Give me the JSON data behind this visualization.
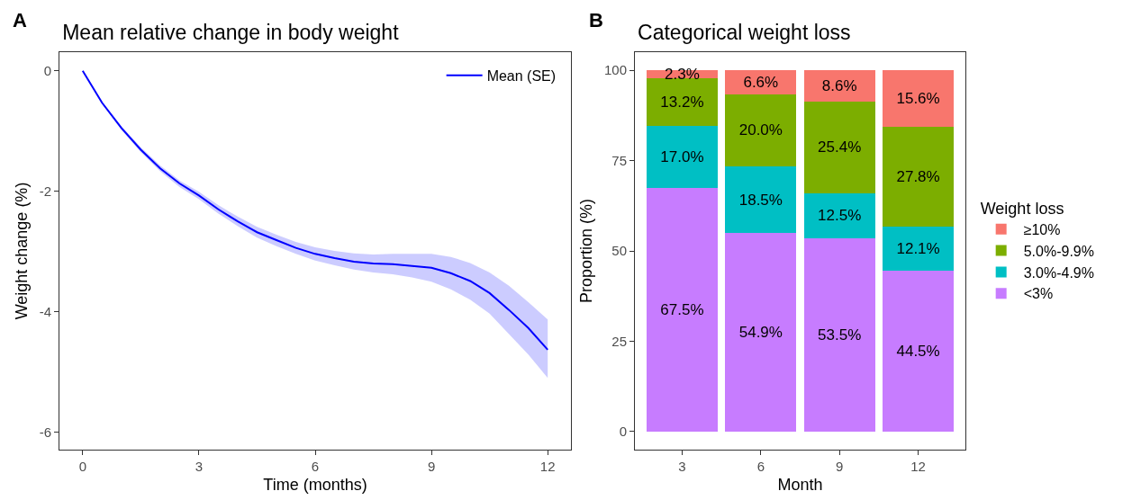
{
  "chart_data": [
    {
      "type": "line",
      "title": "Mean relative change in body weight",
      "xlabel": "Time (months)",
      "ylabel": "Weight change (%)",
      "annotations": [
        "A"
      ],
      "x": [
        0,
        0.5,
        1,
        1.5,
        2,
        2.5,
        3,
        3.5,
        4,
        4.5,
        5,
        5.5,
        6,
        6.5,
        7,
        7.5,
        8,
        8.5,
        9,
        9.5,
        10,
        10.5,
        11,
        11.5,
        12
      ],
      "series": [
        {
          "name": "Mean (SE)",
          "color": "#0000ff",
          "values": [
            0,
            -0.53,
            -0.95,
            -1.31,
            -1.62,
            -1.87,
            -2.07,
            -2.3,
            -2.5,
            -2.68,
            -2.81,
            -2.94,
            -3.04,
            -3.11,
            -3.17,
            -3.2,
            -3.21,
            -3.24,
            -3.27,
            -3.36,
            -3.49,
            -3.69,
            -3.97,
            -4.27,
            -4.63
          ],
          "upper": [
            0,
            -0.51,
            -0.92,
            -1.27,
            -1.57,
            -1.82,
            -2.01,
            -2.23,
            -2.42,
            -2.59,
            -2.72,
            -2.84,
            -2.93,
            -2.99,
            -3.03,
            -3.05,
            -3.04,
            -3.04,
            -3.04,
            -3.09,
            -3.19,
            -3.35,
            -3.57,
            -3.84,
            -4.13
          ],
          "lower": [
            0,
            -0.55,
            -0.98,
            -1.35,
            -1.67,
            -1.93,
            -2.13,
            -2.37,
            -2.58,
            -2.77,
            -2.91,
            -3.04,
            -3.15,
            -3.23,
            -3.3,
            -3.35,
            -3.38,
            -3.43,
            -3.5,
            -3.63,
            -3.8,
            -4.03,
            -4.37,
            -4.71,
            -5.1
          ]
        }
      ],
      "xlim": [
        -0.6,
        12.6
      ],
      "xticks": [
        0,
        3,
        6,
        9,
        12
      ],
      "ylim": [
        -6.29,
        0.31
      ],
      "yticks": [
        0,
        -2,
        -4,
        -6
      ],
      "grid": false,
      "legend": "top right",
      "marker": "none",
      "line_style": "solid"
    },
    {
      "type": "bar",
      "stacked": true,
      "title": "Categorical weight loss",
      "xlabel": "Month",
      "ylabel": "Proportion (%)",
      "legend_title": "Weight loss",
      "annotations": [
        "B"
      ],
      "categories": [
        "3",
        "6",
        "9",
        "12"
      ],
      "series": [
        {
          "name": "<3%",
          "color": "#c77cff",
          "values": [
            67.5,
            54.9,
            53.5,
            44.5
          ],
          "value_labels": [
            "67.5%",
            "54.9%",
            "53.5%",
            "44.5%"
          ]
        },
        {
          "name": "3.0%-4.9%",
          "color": "#00bfc4",
          "values": [
            17.0,
            18.5,
            12.5,
            12.1
          ],
          "value_labels": [
            "17.0%",
            "18.5%",
            "12.5%",
            "12.1%"
          ]
        },
        {
          "name": "5.0%-9.9%",
          "color": "#7cae00",
          "values": [
            13.2,
            20.0,
            25.4,
            27.8
          ],
          "value_labels": [
            "13.2%",
            "20.0%",
            "25.4%",
            "27.8%"
          ]
        },
        {
          "name": "≥10%",
          "color": "#f8766d",
          "values": [
            2.3,
            6.6,
            8.6,
            15.6
          ],
          "value_labels": [
            "2.3%",
            "6.6%",
            "8.6%",
            "15.6%"
          ]
        }
      ],
      "ylim": [
        -5,
        105
      ],
      "yticks": [
        0,
        25,
        50,
        75,
        100
      ],
      "grid": false,
      "legend": "right"
    }
  ]
}
